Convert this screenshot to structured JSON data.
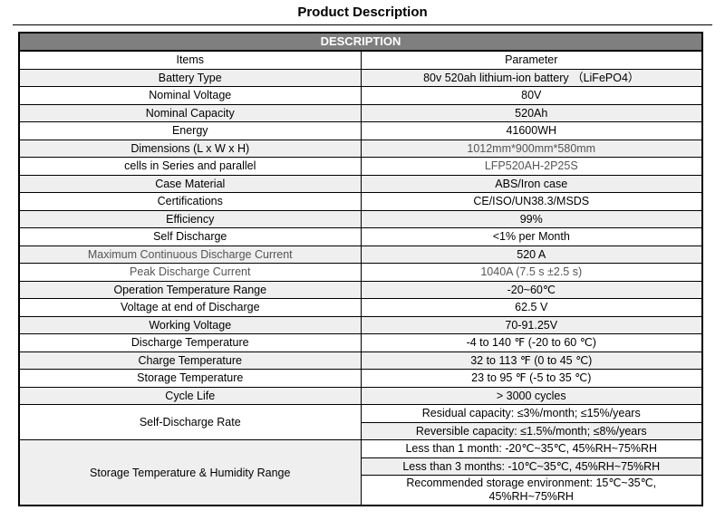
{
  "page_title": "Product Description",
  "table": {
    "header": "DESCRIPTION",
    "col_items": "Items",
    "col_param": "Parameter",
    "rows": [
      {
        "item": "Battery Type",
        "value": "80v 520ah lithium-ion battery （LiFePO4）"
      },
      {
        "item": "Nominal Voltage",
        "value": "80V"
      },
      {
        "item": "Nominal Capacity",
        "value": "520Ah"
      },
      {
        "item": "Energy",
        "value": "41600WH"
      },
      {
        "item": "Dimensions (L x W x H)",
        "value": "1012mm*900mm*580mm"
      },
      {
        "item": "cells in Series and parallel",
        "value": "LFP520AH-2P25S"
      },
      {
        "item": "Case Material",
        "value": "ABS/Iron case"
      },
      {
        "item": "Certifications",
        "value": "CE/ISO/UN38.3/MSDS"
      },
      {
        "item": "Efficiency",
        "value": "99%"
      },
      {
        "item": "Self Discharge",
        "value": "<1% per Month"
      },
      {
        "item": "Maximum Continuous Discharge Current",
        "value": "520 A"
      },
      {
        "item": "Peak Discharge Current",
        "value": "1040A (7.5 s ±2.5 s)"
      },
      {
        "item": "Operation Temperature Range",
        "value": "-20~60℃"
      },
      {
        "item": "Voltage at end of Discharge",
        "value": "62.5 V"
      },
      {
        "item": "Working Voltage",
        "value": "70-91.25V"
      },
      {
        "item": "Discharge Temperature",
        "value": "-4 to 140 ℉ (-20 to 60 ℃)"
      },
      {
        "item": "Charge Temperature",
        "value": "32 to 113 ℉ (0 to 45 ℃)"
      },
      {
        "item": "Storage Temperature",
        "value": "23 to 95 ℉ (-5 to 35 ℃)"
      },
      {
        "item": "Cycle Life",
        "value": "> 3000 cycles"
      }
    ],
    "self_discharge_rate": {
      "item": "Self-Discharge Rate",
      "values": [
        "Residual capacity: ≤3%/month; ≤15%/years",
        "Reversible capacity: ≤1.5%/month; ≤8%/years"
      ]
    },
    "storage_range": {
      "item": "Storage Temperature & Humidity Range",
      "values": [
        "Less than 1 month: -20℃~35℃, 45%RH~75%RH",
        "Less than 3 months: -10℃~35℃, 45%RH~75%RH",
        "Recommended storage environment: 15℃~35℃, 45%RH~75%RH"
      ]
    }
  }
}
